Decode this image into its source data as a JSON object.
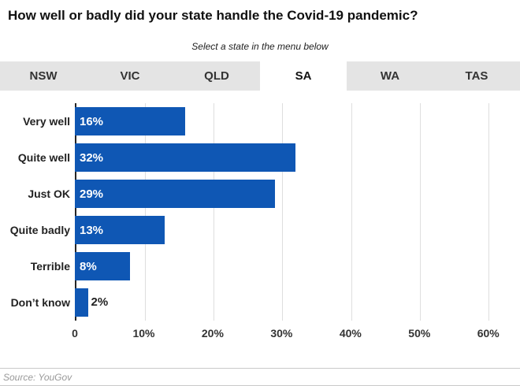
{
  "title": "How well or badly did your state handle the Covid-19 pandemic?",
  "subtitle": "Select a state in the menu below",
  "tabs": [
    {
      "label": "NSW",
      "active": false
    },
    {
      "label": "VIC",
      "active": false
    },
    {
      "label": "QLD",
      "active": false
    },
    {
      "label": "SA",
      "active": true
    },
    {
      "label": "WA",
      "active": false
    },
    {
      "label": "TAS",
      "active": false
    }
  ],
  "chart_data": {
    "type": "bar",
    "orientation": "horizontal",
    "title": "How well or badly did your state handle the Covid-19 pandemic?",
    "subtitle": "Select a state in the menu below",
    "selected_series": "SA",
    "categories": [
      "Very well",
      "Quite well",
      "Just OK",
      "Quite badly",
      "Terrible",
      "Don’t know"
    ],
    "values": [
      16,
      32,
      29,
      13,
      8,
      2
    ],
    "value_labels": [
      "16%",
      "32%",
      "29%",
      "13%",
      "8%",
      "2%"
    ],
    "xlim": [
      0,
      63
    ],
    "grid_values": [
      10,
      20,
      30,
      40,
      50,
      60
    ],
    "ticks": [
      {
        "value": 0,
        "label": "0"
      },
      {
        "value": 10,
        "label": "10%"
      },
      {
        "value": 20,
        "label": "20%"
      },
      {
        "value": 30,
        "label": "30%"
      },
      {
        "value": 40,
        "label": "40%"
      },
      {
        "value": 50,
        "label": "50%"
      },
      {
        "value": 60,
        "label": "60%"
      }
    ],
    "bar_color": "#0f57b4",
    "grid_on": true,
    "legend": "none"
  },
  "source": "Source: YouGov",
  "colors": {
    "bar": "#0f57b4",
    "tab_bar_bg": "#e4e4e4",
    "active_tab_bg": "#ffffff",
    "gridline": "#dedede",
    "axis": "#262626"
  }
}
